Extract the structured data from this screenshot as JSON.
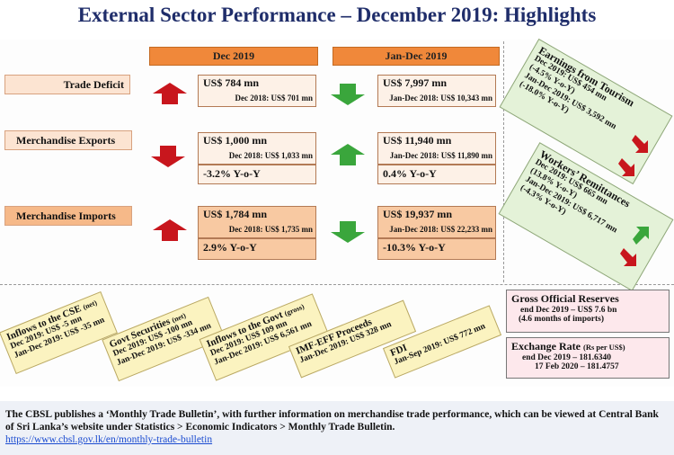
{
  "title": "External Sector Performance – December 2019: Highlights",
  "headers": {
    "dec": "Dec 2019",
    "jandec": "Jan-Dec 2019"
  },
  "rows": [
    {
      "label": "Trade Deficit",
      "dec": {
        "value": "US$ 784 mn",
        "prev": "Dec 2018: US$ 701 mn",
        "yoy": ""
      },
      "jandec": {
        "value": "US$ 7,997 mn",
        "prev": "Jan-Dec 2018: US$ 10,343 mn",
        "yoy": ""
      }
    },
    {
      "label": "Merchandise Exports",
      "dec": {
        "value": "US$ 1,000 mn",
        "prev": "Dec 2018: US$ 1,033 mn",
        "yoy": "-3.2% Y-o-Y"
      },
      "jandec": {
        "value": "US$ 11,940 mn",
        "prev": "Jan-Dec 2018: US$ 11,890 mn",
        "yoy": "0.4% Y-o-Y"
      }
    },
    {
      "label": "Merchandise Imports",
      "dec": {
        "value": "US$ 1,784 mn",
        "prev": "Dec 2018: US$ 1,735 mn",
        "yoy": "2.9% Y-o-Y"
      },
      "jandec": {
        "value": "US$ 19,937 mn",
        "prev": "Jan-Dec 2018: US$ 22,233 mn",
        "yoy": "-10.3% Y-o-Y"
      }
    }
  ],
  "tourism": {
    "title": "Earnings from Tourism",
    "l1": "Dec 2019: US$ 454 mn",
    "l2": "(-4.5% Y-o-Y)",
    "l3": "Jan-Dec 2019: US$ 3,592 mn",
    "l4": "(-18.0% Y-o-Y)"
  },
  "remittances": {
    "title": "Workers’ Remittances",
    "l1": "Dec 2019: US$ 665 mn",
    "l2": "(13.8% Y-o-Y)",
    "l3": "Jan-Dec 2019: US$ 6,717 mn",
    "l4": "(-4.3% Y-o-Y)"
  },
  "notes": [
    {
      "title": "Inflows to the CSE",
      "title_suffix": "(net)",
      "l1": "Dec 2019: US$ -5 mn",
      "l2": "Jan-Dec 2019: US$ -35 mn"
    },
    {
      "title": "Govt Securities",
      "title_suffix": "(net)",
      "l1": "Dec 2019: US$ -100 mn",
      "l2": "Jan-Dec 2019: US$ -334 mn"
    },
    {
      "title": "Inflows to the Govt",
      "title_suffix": "(gross)",
      "l1": "Dec 2019: US$ 109 mn",
      "l2": "Jan-Dec 2019: US$ 6,561 mn"
    },
    {
      "title": "IMF-EFF Proceeds",
      "title_suffix": "",
      "l1": "Jan-Dec 2019: US$ 328 mn",
      "l2": ""
    },
    {
      "title": "FDI",
      "title_suffix": "",
      "l1": "Jan-Sep 2019: US$ 772 mn",
      "l2": ""
    }
  ],
  "reserves": {
    "title": "Gross Official Reserves",
    "l1": "end Dec 2019 – US$ 7.6 bn",
    "l2": "(4.6 months of imports)"
  },
  "exchange": {
    "title": "Exchange Rate",
    "title_suffix": "(Rs per US$)",
    "l1": "end Dec 2019 – 181.6340",
    "l2": "17 Feb 2020 – 181.4757"
  },
  "footer": {
    "text": "The CBSL publishes a ‘Monthly Trade Bulletin’, with further information on merchandise trade performance, which can be viewed at Central Bank of Sri Lanka’s website under Statistics > Economic Indicators > Monthly Trade Bulletin.",
    "link": "https://www.cbsl.gov.lk/en/monthly-trade-bulletin"
  },
  "colors": {
    "up_red": "#c8161d",
    "down_green": "#3aa63c",
    "header_orange": "#f0883a",
    "title_navy": "#1f2d6a"
  }
}
